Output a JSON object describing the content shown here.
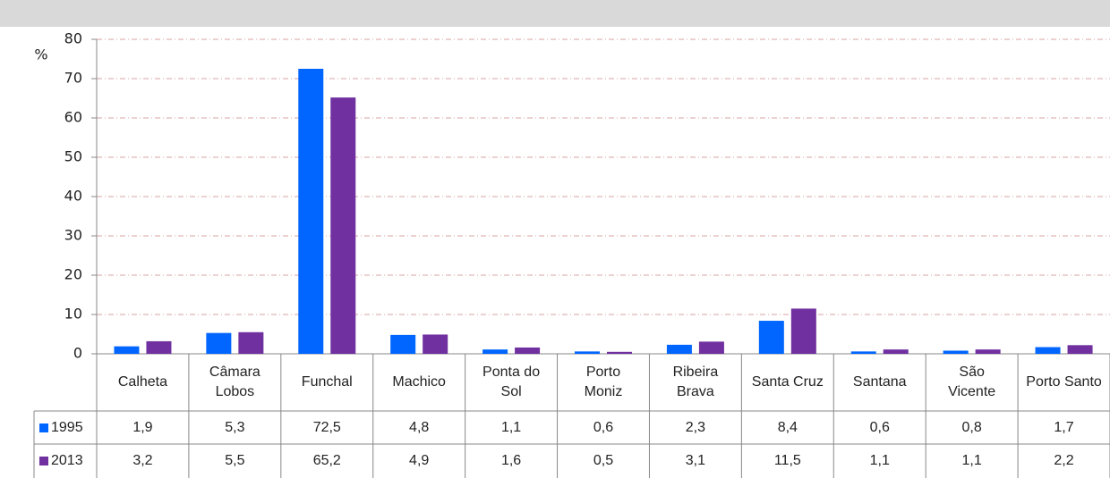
{
  "chart_data": {
    "type": "bar",
    "y_label": "%",
    "categories": [
      "Calheta",
      "Câmara Lobos",
      "Funchal",
      "Machico",
      "Ponta do Sol",
      "Porto Moniz",
      "Ribeira Brava",
      "Santa Cruz",
      "Santana",
      "São Vicente",
      "Porto Santo"
    ],
    "series": [
      {
        "name": "1995",
        "color": "#0066ff",
        "values": [
          1.9,
          5.3,
          72.5,
          4.8,
          1.1,
          0.6,
          2.3,
          8.4,
          0.6,
          0.8,
          1.7
        ],
        "value_labels": [
          "1,9",
          "5,3",
          "72,5",
          "4,8",
          "1,1",
          "0,6",
          "2,3",
          "8,4",
          "0,6",
          "0,8",
          "1,7"
        ]
      },
      {
        "name": "2013",
        "color": "#7030a0",
        "values": [
          3.2,
          5.5,
          65.2,
          4.9,
          1.6,
          0.5,
          3.1,
          11.5,
          1.1,
          1.1,
          2.2
        ],
        "value_labels": [
          "3,2",
          "5,5",
          "65,2",
          "4,9",
          "1,6",
          "0,5",
          "3,1",
          "11,5",
          "1,1",
          "1,1",
          "2,2"
        ]
      }
    ],
    "ylim": [
      0,
      80
    ],
    "yticks": [
      0,
      10,
      20,
      30,
      40,
      50,
      60,
      70,
      80
    ],
    "grid": true
  }
}
